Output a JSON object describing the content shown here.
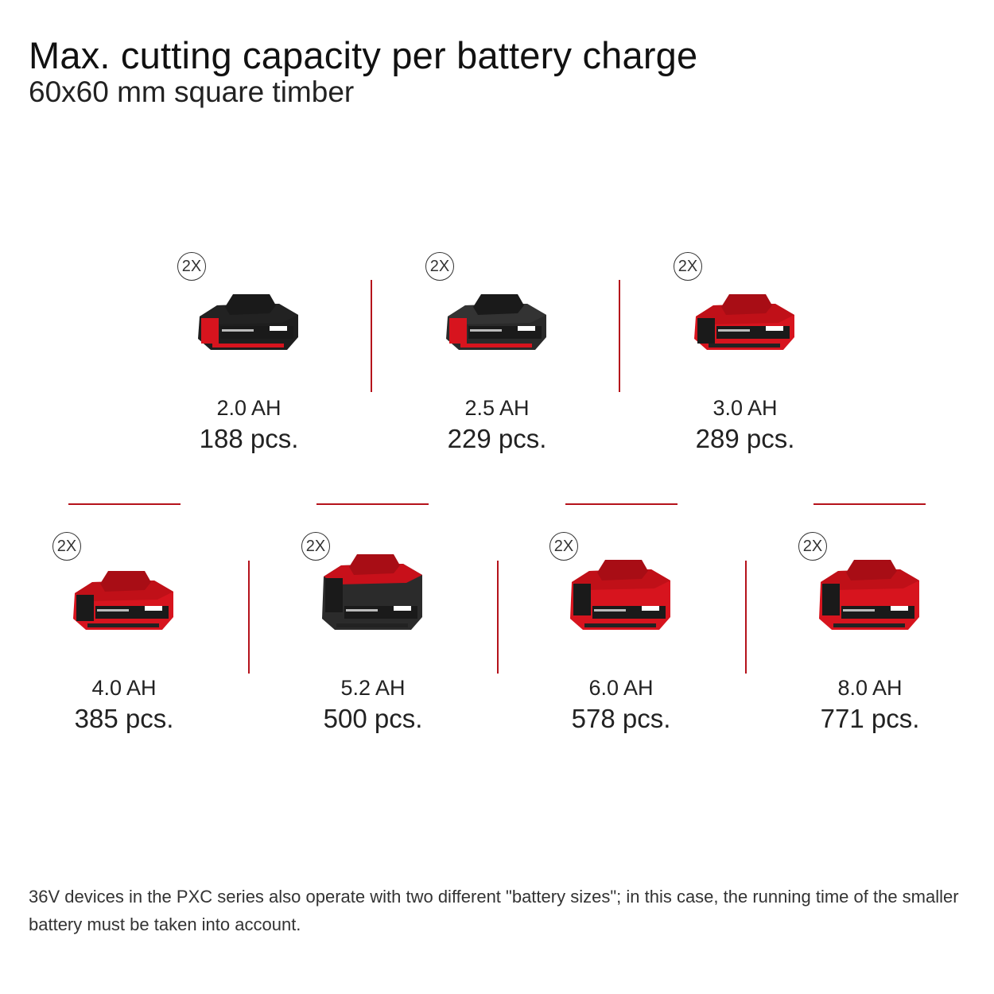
{
  "title": "Max. cutting capacity per battery charge",
  "subtitle": "60x60 mm square timber",
  "colors": {
    "accent": "#b5121b",
    "battery_red": "#d7141e",
    "battery_black": "#1e1e1e"
  },
  "batteries": [
    {
      "badge": "2X",
      "capacity": "2.0 AH",
      "count": "188 pcs.",
      "icon": "battery-2ah-icon"
    },
    {
      "badge": "2X",
      "capacity": "2.5 AH",
      "count": "229 pcs.",
      "icon": "battery-2-5ah-icon"
    },
    {
      "badge": "2X",
      "capacity": "3.0 AH",
      "count": "289 pcs.",
      "icon": "battery-3ah-icon"
    },
    {
      "badge": "2X",
      "capacity": "4.0 AH",
      "count": "385 pcs.",
      "icon": "battery-4ah-icon"
    },
    {
      "badge": "2X",
      "capacity": "5.2 AH",
      "count": "500 pcs.",
      "icon": "battery-5-2ah-icon"
    },
    {
      "badge": "2X",
      "capacity": "6.0 AH",
      "count": "578 pcs.",
      "icon": "battery-6ah-icon"
    },
    {
      "badge": "2X",
      "capacity": "8.0 AH",
      "count": "771 pcs.",
      "icon": "battery-8ah-icon"
    }
  ],
  "footnote": "36V devices in the PXC series also operate with two different \"battery sizes\"; in this case, the running time of the smaller battery must be taken into account."
}
